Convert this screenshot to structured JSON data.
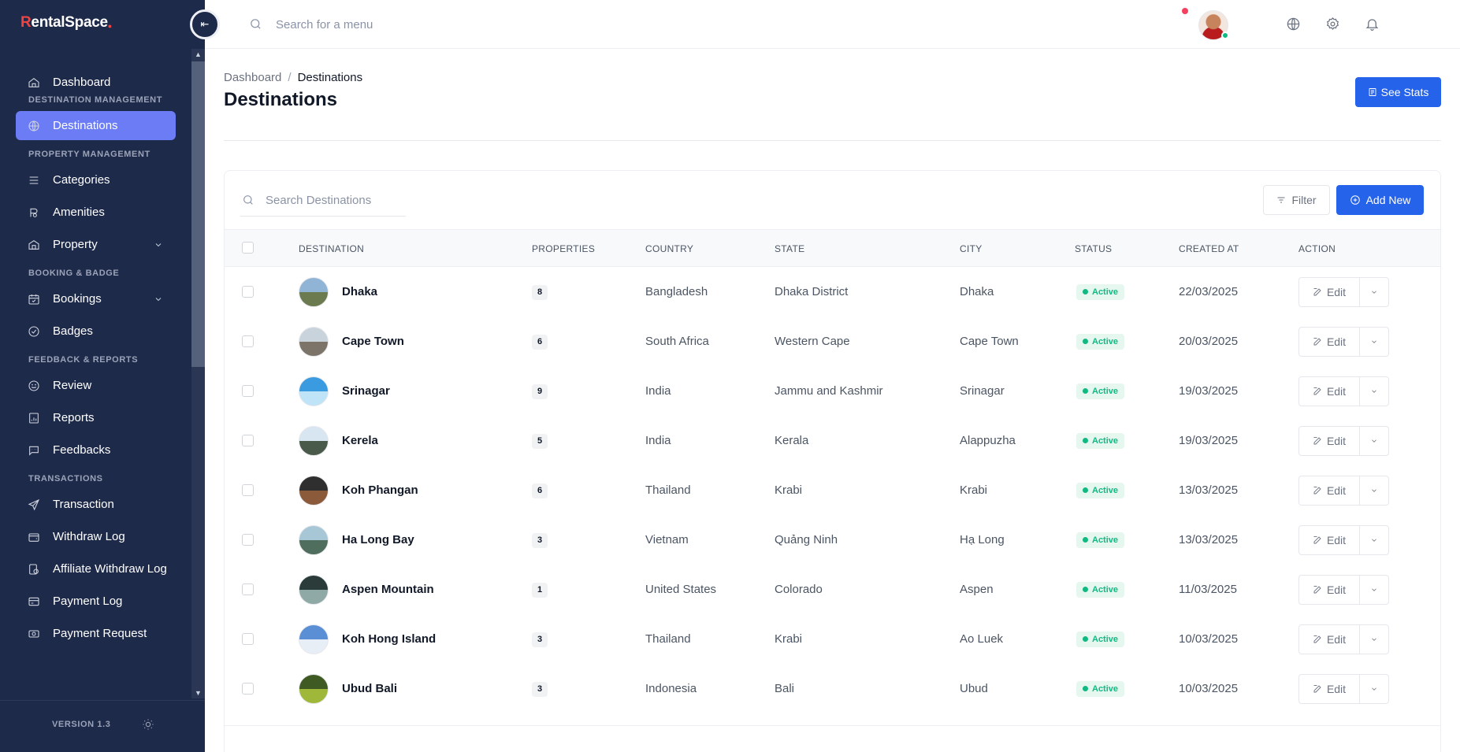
{
  "app": {
    "logo_r": "R",
    "logo_rest": "entalSpace"
  },
  "sidebar": {
    "sections": [
      {
        "label": "Destination Management"
      },
      {
        "label": "Property Management"
      },
      {
        "label": "Booking & Badge"
      },
      {
        "label": "Feedback & Reports"
      },
      {
        "label": "Transactions"
      }
    ],
    "items": [
      {
        "label": "Dashboard",
        "icon": "home-icon"
      },
      {
        "label": "Destinations",
        "icon": "globe-icon",
        "active": true
      },
      {
        "label": "Categories",
        "icon": "list-icon"
      },
      {
        "label": "Amenities",
        "icon": "amenities-icon"
      },
      {
        "label": "Property",
        "icon": "property-icon",
        "has_children": true
      },
      {
        "label": "Bookings",
        "icon": "calendar-icon",
        "has_children": true
      },
      {
        "label": "Badges",
        "icon": "badge-check-icon"
      },
      {
        "label": "Review",
        "icon": "smile-icon"
      },
      {
        "label": "Reports",
        "icon": "report-icon"
      },
      {
        "label": "Feedbacks",
        "icon": "chat-icon"
      },
      {
        "label": "Transaction",
        "icon": "send-icon"
      },
      {
        "label": "Withdraw Log",
        "icon": "wallet-icon"
      },
      {
        "label": "Affiliate Withdraw Log",
        "icon": "affiliate-icon"
      },
      {
        "label": "Payment Log",
        "icon": "card-icon"
      },
      {
        "label": "Payment Request",
        "icon": "money-icon"
      }
    ],
    "version": "VERSION 1.3"
  },
  "header": {
    "search_placeholder": "Search for a menu",
    "icons": [
      "globe-icon",
      "gear-icon",
      "bell-icon"
    ]
  },
  "page": {
    "breadcrumb": [
      "Dashboard",
      "Destinations"
    ],
    "title": "Destinations",
    "see_stats_label": "See Stats"
  },
  "toolbar": {
    "search_placeholder": "Search Destinations",
    "filter_label": "Filter",
    "add_label": "Add New"
  },
  "table": {
    "columns": [
      "Destination",
      "Properties",
      "Country",
      "State",
      "City",
      "Status",
      "Created At",
      "Action"
    ],
    "edit_label": "Edit",
    "rows": [
      {
        "name": "Dhaka",
        "properties": "8",
        "country": "Bangladesh",
        "state": "Dhaka District",
        "city": "Dhaka",
        "status": "Active",
        "created": "22/03/2025",
        "img_colors": [
          "#8fb4d6",
          "#6b7a4f"
        ]
      },
      {
        "name": "Cape Town",
        "properties": "6",
        "country": "South Africa",
        "state": "Western Cape",
        "city": "Cape Town",
        "status": "Active",
        "created": "20/03/2025",
        "img_colors": [
          "#c9d3dc",
          "#7c7468"
        ]
      },
      {
        "name": "Srinagar",
        "properties": "9",
        "country": "India",
        "state": "Jammu and Kashmir",
        "city": "Srinagar",
        "status": "Active",
        "created": "19/03/2025",
        "img_colors": [
          "#3b9be0",
          "#bfe3f7"
        ]
      },
      {
        "name": "Kerela",
        "properties": "5",
        "country": "India",
        "state": "Kerala",
        "city": "Alappuzha",
        "status": "Active",
        "created": "19/03/2025",
        "img_colors": [
          "#d8e6f2",
          "#4a5a4a"
        ]
      },
      {
        "name": "Koh Phangan",
        "properties": "6",
        "country": "Thailand",
        "state": "Krabi",
        "city": "Krabi",
        "status": "Active",
        "created": "13/03/2025",
        "img_colors": [
          "#2f2f2f",
          "#8a5a3a"
        ]
      },
      {
        "name": "Ha Long Bay",
        "properties": "3",
        "country": "Vietnam",
        "state": "Quảng Ninh",
        "city": "Hạ Long",
        "status": "Active",
        "created": "13/03/2025",
        "img_colors": [
          "#a7c7d6",
          "#4f6e5e"
        ]
      },
      {
        "name": "Aspen Mountain",
        "properties": "1",
        "country": "United States",
        "state": "Colorado",
        "city": "Aspen",
        "status": "Active",
        "created": "11/03/2025",
        "img_colors": [
          "#2a3b3a",
          "#8fa9a6"
        ]
      },
      {
        "name": "Koh Hong Island",
        "properties": "3",
        "country": "Thailand",
        "state": "Krabi",
        "city": "Ao Luek",
        "status": "Active",
        "created": "10/03/2025",
        "img_colors": [
          "#5a8fd6",
          "#e8eef6"
        ]
      },
      {
        "name": "Ubud Bali",
        "properties": "3",
        "country": "Indonesia",
        "state": "Bali",
        "city": "Ubud",
        "status": "Active",
        "created": "10/03/2025",
        "img_colors": [
          "#3f5a22",
          "#9fb83a"
        ]
      }
    ]
  }
}
